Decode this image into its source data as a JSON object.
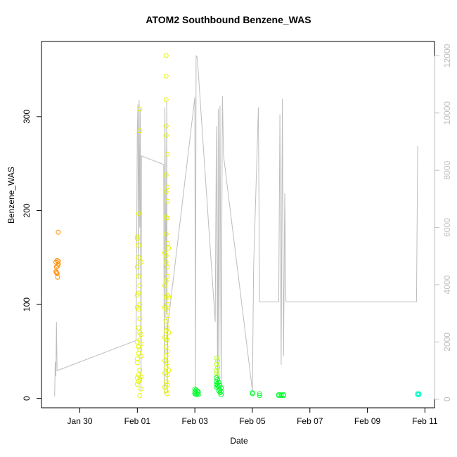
{
  "chart_data": {
    "type": "scatter",
    "title": "ATOM2 Southbound Benzene_WAS",
    "xlabel": "Date",
    "ylabel": "Benzene_WAS",
    "x_ticks": [
      "Jan 30",
      "Feb 01",
      "Feb 03",
      "Feb 05",
      "Feb 07",
      "Feb 09",
      "Feb 11"
    ],
    "xlim": [
      "2017-01-28 16:00",
      "2017-02-11 08:00"
    ],
    "ylim": [
      -10,
      380
    ],
    "y_ticks": [
      0,
      100,
      200,
      300
    ],
    "y2_ticks": [
      0,
      2000,
      4000,
      6000,
      8000,
      10000,
      12000
    ],
    "y2lim": [
      -300,
      12500
    ],
    "grid": false,
    "legend": "none",
    "colors": {
      "orange": "#ff8c00",
      "yellow": "#e6f500",
      "yellow_green": "#b5ff2a",
      "green": "#00ff2a",
      "cyan": "#00ffcc",
      "line": "#bdbdbd",
      "right_axis": "#bdbdbd"
    },
    "series": [
      {
        "color": "orange",
        "points": [
          [
            "2017-01-29 04:00",
            135
          ],
          [
            "2017-01-29 04:00",
            145
          ],
          [
            "2017-01-29 04:30",
            134
          ],
          [
            "2017-01-29 04:30",
            140
          ],
          [
            "2017-01-29 05:00",
            147
          ],
          [
            "2017-01-29 05:00",
            133
          ],
          [
            "2017-01-29 05:30",
            129
          ],
          [
            "2017-01-29 05:30",
            141
          ],
          [
            "2017-01-29 06:00",
            143
          ],
          [
            "2017-01-29 06:00",
            177
          ],
          [
            "2017-01-29 06:00",
            146
          ]
        ]
      },
      {
        "color": "yellow",
        "points": [
          [
            "2017-02-01 00:00",
            172
          ],
          [
            "2017-02-01 00:00",
            170
          ],
          [
            "2017-02-01 00:00",
            140
          ],
          [
            "2017-02-01 00:00",
            110
          ],
          [
            "2017-02-01 00:00",
            97
          ],
          [
            "2017-02-01 00:00",
            60
          ],
          [
            "2017-02-01 00:00",
            42
          ],
          [
            "2017-02-01 00:00",
            38
          ],
          [
            "2017-02-01 00:00",
            22
          ],
          [
            "2017-02-01 00:00",
            15
          ],
          [
            "2017-02-01 01:00",
            197
          ],
          [
            "2017-02-01 01:00",
            163
          ],
          [
            "2017-02-01 01:00",
            150
          ],
          [
            "2017-02-01 01:00",
            130
          ],
          [
            "2017-02-01 01:00",
            112
          ],
          [
            "2017-02-01 01:00",
            95
          ],
          [
            "2017-02-01 01:00",
            75
          ],
          [
            "2017-02-01 01:00",
            55
          ],
          [
            "2017-02-01 01:00",
            48
          ],
          [
            "2017-02-01 01:00",
            25
          ],
          [
            "2017-02-01 01:00",
            18
          ],
          [
            "2017-02-01 02:00",
            308
          ],
          [
            "2017-02-01 02:00",
            285
          ],
          [
            "2017-02-01 02:00",
            120
          ],
          [
            "2017-02-01 02:00",
            100
          ],
          [
            "2017-02-01 02:00",
            85
          ],
          [
            "2017-02-01 02:00",
            70
          ],
          [
            "2017-02-01 02:00",
            62
          ],
          [
            "2017-02-01 02:00",
            52
          ],
          [
            "2017-02-01 02:00",
            30
          ],
          [
            "2017-02-01 02:00",
            20
          ],
          [
            "2017-02-01 02:00",
            3
          ],
          [
            "2017-02-01 03:00",
            145
          ],
          [
            "2017-02-01 03:00",
            68
          ],
          [
            "2017-02-01 03:00",
            58
          ],
          [
            "2017-02-01 03:00",
            45
          ],
          [
            "2017-02-01 03:00",
            23
          ],
          [
            "2017-02-01 03:00",
            10
          ],
          [
            "2017-02-01 23:00",
            155
          ],
          [
            "2017-02-01 23:00",
            120
          ],
          [
            "2017-02-01 23:00",
            97
          ],
          [
            "2017-02-01 23:00",
            65
          ],
          [
            "2017-02-01 23:00",
            40
          ],
          [
            "2017-02-01 23:00",
            27
          ],
          [
            "2017-02-01 23:00",
            12
          ],
          [
            "2017-02-02 00:00",
            365
          ],
          [
            "2017-02-02 00:00",
            343
          ],
          [
            "2017-02-02 00:00",
            318
          ],
          [
            "2017-02-02 00:00",
            290
          ],
          [
            "2017-02-02 00:00",
            280
          ],
          [
            "2017-02-02 00:00",
            238
          ],
          [
            "2017-02-02 00:00",
            220
          ],
          [
            "2017-02-02 00:00",
            193
          ],
          [
            "2017-02-02 00:00",
            175
          ],
          [
            "2017-02-02 00:00",
            152
          ],
          [
            "2017-02-02 00:00",
            145
          ],
          [
            "2017-02-02 00:00",
            125
          ],
          [
            "2017-02-02 00:00",
            108
          ],
          [
            "2017-02-02 00:00",
            95
          ],
          [
            "2017-02-02 00:00",
            82
          ],
          [
            "2017-02-02 00:00",
            72
          ],
          [
            "2017-02-02 00:00",
            63
          ],
          [
            "2017-02-02 00:00",
            55
          ],
          [
            "2017-02-02 00:00",
            45
          ],
          [
            "2017-02-02 00:00",
            33
          ],
          [
            "2017-02-02 00:00",
            18
          ],
          [
            "2017-02-02 00:00",
            8
          ],
          [
            "2017-02-02 01:00",
            260
          ],
          [
            "2017-02-02 01:00",
            225
          ],
          [
            "2017-02-02 01:00",
            210
          ],
          [
            "2017-02-02 01:00",
            192
          ],
          [
            "2017-02-02 01:00",
            165
          ],
          [
            "2017-02-02 01:00",
            140
          ],
          [
            "2017-02-02 01:00",
            130
          ],
          [
            "2017-02-02 01:00",
            110
          ],
          [
            "2017-02-02 01:00",
            100
          ],
          [
            "2017-02-02 01:00",
            88
          ],
          [
            "2017-02-02 01:00",
            75
          ],
          [
            "2017-02-02 01:00",
            62
          ],
          [
            "2017-02-02 01:00",
            50
          ],
          [
            "2017-02-02 01:00",
            38
          ],
          [
            "2017-02-02 01:00",
            25
          ],
          [
            "2017-02-02 01:00",
            14
          ],
          [
            "2017-02-02 01:00",
            5
          ],
          [
            "2017-02-02 02:00",
            160
          ],
          [
            "2017-02-02 02:00",
            108
          ],
          [
            "2017-02-02 02:00",
            70
          ],
          [
            "2017-02-02 02:00",
            30
          ]
        ]
      },
      {
        "color": "yellow_green",
        "points": [
          [
            "2017-02-03 18:00",
            43
          ],
          [
            "2017-02-03 18:00",
            36
          ],
          [
            "2017-02-03 18:00",
            30
          ],
          [
            "2017-02-03 18:00",
            27
          ],
          [
            "2017-02-03 19:00",
            40
          ],
          [
            "2017-02-03 19:00",
            33
          ],
          [
            "2017-02-03 19:00",
            24
          ]
        ]
      },
      {
        "color": "green",
        "points": [
          [
            "2017-02-03 00:00",
            10
          ],
          [
            "2017-02-03 00:00",
            7
          ],
          [
            "2017-02-03 00:00",
            5
          ],
          [
            "2017-02-03 01:00",
            9
          ],
          [
            "2017-02-03 01:00",
            6
          ],
          [
            "2017-02-03 01:00",
            4
          ],
          [
            "2017-02-03 02:00",
            8
          ],
          [
            "2017-02-03 02:00",
            5
          ],
          [
            "2017-02-03 03:00",
            7
          ],
          [
            "2017-02-03 03:00",
            4
          ],
          [
            "2017-02-03 18:00",
            22
          ],
          [
            "2017-02-03 18:00",
            18
          ],
          [
            "2017-02-03 18:00",
            15
          ],
          [
            "2017-02-03 18:00",
            12
          ],
          [
            "2017-02-03 19:00",
            20
          ],
          [
            "2017-02-03 19:00",
            16
          ],
          [
            "2017-02-03 19:00",
            13
          ],
          [
            "2017-02-03 20:00",
            17
          ],
          [
            "2017-02-03 20:00",
            12
          ],
          [
            "2017-02-03 20:00",
            8
          ],
          [
            "2017-02-03 21:00",
            14
          ],
          [
            "2017-02-03 21:00",
            9
          ],
          [
            "2017-02-03 21:00",
            6
          ],
          [
            "2017-02-03 22:00",
            11
          ],
          [
            "2017-02-03 22:00",
            7
          ],
          [
            "2017-02-03 22:00",
            4
          ],
          [
            "2017-02-05 00:00",
            6
          ],
          [
            "2017-02-05 00:00",
            5
          ],
          [
            "2017-02-05 06:00",
            5
          ],
          [
            "2017-02-05 06:00",
            3
          ],
          [
            "2017-02-05 22:00",
            4
          ],
          [
            "2017-02-05 22:00",
            3
          ],
          [
            "2017-02-06 00:00",
            4
          ],
          [
            "2017-02-06 00:00",
            3
          ],
          [
            "2017-02-06 02:00",
            4
          ],
          [
            "2017-02-06 02:00",
            3
          ]
        ]
      },
      {
        "color": "cyan",
        "points": [
          [
            "2017-02-10 18:00",
            5
          ],
          [
            "2017-02-10 18:00",
            4
          ],
          [
            "2017-02-10 19:00",
            5
          ],
          [
            "2017-02-10 19:00",
            4
          ]
        ]
      }
    ],
    "line_series": [
      [
        "2017-01-29 03:00",
        100
      ],
      [
        "2017-01-29 03:30",
        1300
      ],
      [
        "2017-01-29 04:00",
        800
      ],
      [
        "2017-01-29 04:30",
        2700
      ],
      [
        "2017-01-29 05:00",
        1000
      ],
      [
        "2017-01-31 23:00",
        2050
      ],
      [
        "2017-02-01 00:00",
        9400
      ],
      [
        "2017-02-01 00:30",
        10300
      ],
      [
        "2017-02-01 01:00",
        4200
      ],
      [
        "2017-02-01 01:30",
        10450
      ],
      [
        "2017-02-01 02:00",
        6000
      ],
      [
        "2017-02-01 02:30",
        10150
      ],
      [
        "2017-02-01 03:00",
        300
      ],
      [
        "2017-02-01 03:30",
        8500
      ],
      [
        "2017-02-01 22:00",
        8200
      ],
      [
        "2017-02-01 22:30",
        200
      ],
      [
        "2017-02-01 23:00",
        10200
      ],
      [
        "2017-02-02 00:00",
        3000
      ],
      [
        "2017-02-02 00:30",
        10400
      ],
      [
        "2017-02-02 01:00",
        200
      ],
      [
        "2017-02-02 01:30",
        2600
      ],
      [
        "2017-02-03 00:00",
        10550
      ],
      [
        "2017-02-03 00:30",
        300
      ],
      [
        "2017-02-03 01:00",
        12000
      ],
      [
        "2017-02-03 02:00",
        11950
      ],
      [
        "2017-02-03 17:00",
        2700
      ],
      [
        "2017-02-03 18:00",
        9550
      ],
      [
        "2017-02-03 19:00",
        400
      ],
      [
        "2017-02-03 19:30",
        10150
      ],
      [
        "2017-02-03 20:00",
        700
      ],
      [
        "2017-02-03 21:00",
        10250
      ],
      [
        "2017-02-03 22:00",
        300
      ],
      [
        "2017-02-03 23:00",
        10600
      ],
      [
        "2017-02-04 00:00",
        8500
      ],
      [
        "2017-02-05 00:00",
        300
      ],
      [
        "2017-02-05 01:00",
        4600
      ],
      [
        "2017-02-05 05:00",
        10200
      ],
      [
        "2017-02-05 06:00",
        3400
      ],
      [
        "2017-02-05 22:00",
        3400
      ],
      [
        "2017-02-05 23:00",
        9950
      ],
      [
        "2017-02-06 00:00",
        1200
      ],
      [
        "2017-02-06 01:00",
        10500
      ],
      [
        "2017-02-06 02:00",
        1500
      ],
      [
        "2017-02-06 03:00",
        7200
      ],
      [
        "2017-02-06 04:00",
        3400
      ],
      [
        "2017-02-10 17:00",
        3400
      ],
      [
        "2017-02-10 18:00",
        8850
      ]
    ]
  }
}
